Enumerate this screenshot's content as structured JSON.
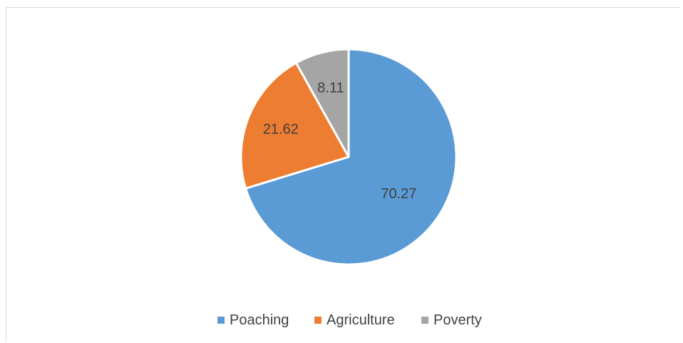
{
  "chart_data": {
    "type": "pie",
    "categories": [
      "Poaching",
      "Agriculture",
      "Poverty"
    ],
    "values": [
      70.27,
      21.62,
      8.11
    ],
    "colors": [
      "#5B9BD5",
      "#ED7D31",
      "#A5A5A5"
    ],
    "data_labels": [
      "70.27",
      "21.62",
      "8.11"
    ],
    "legend": {
      "placement": "bottom",
      "entries": [
        "Poaching",
        "Agriculture",
        "Poverty"
      ]
    },
    "start_angle_deg": 0,
    "direction": "clockwise"
  }
}
